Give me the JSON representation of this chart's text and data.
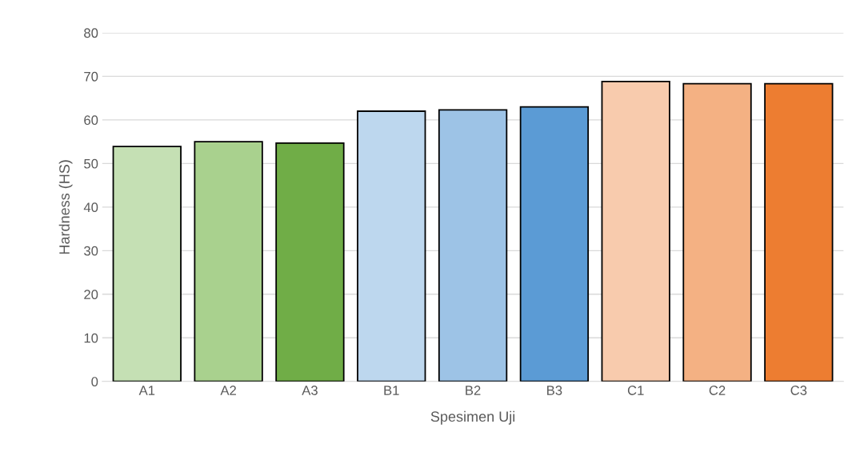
{
  "chart_data": {
    "type": "bar",
    "xlabel": "Spesimen Uji",
    "ylabel": "Hardness (HS)",
    "categories": [
      "A1",
      "A2",
      "A3",
      "B1",
      "B2",
      "B3",
      "C1",
      "C2",
      "C3"
    ],
    "values": [
      53.9,
      55.0,
      54.7,
      62.0,
      62.3,
      63.0,
      68.8,
      68.3,
      68.3
    ],
    "colors": [
      "#c5e0b4",
      "#a9d18e",
      "#70ad47",
      "#bdd7ee",
      "#9dc3e6",
      "#5b9bd5",
      "#f8cbad",
      "#f4b183",
      "#ed7d31"
    ],
    "ylim": [
      0,
      80
    ],
    "yticks": [
      0,
      10,
      20,
      30,
      40,
      50,
      60,
      70,
      80
    ],
    "grid": "y"
  }
}
